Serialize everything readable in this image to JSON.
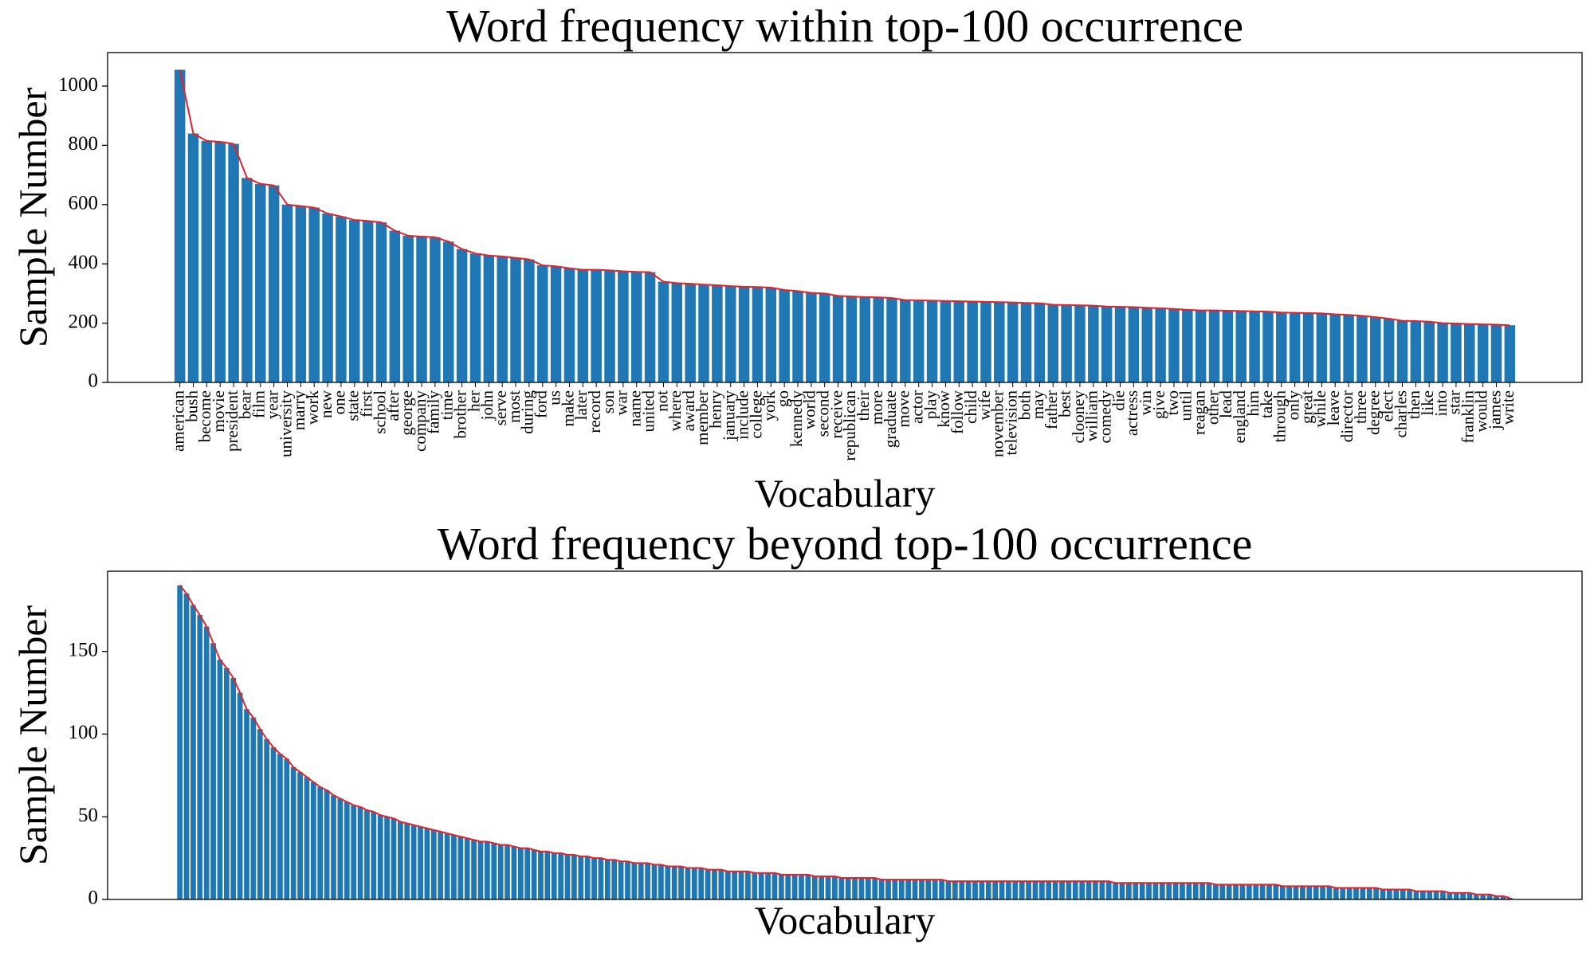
{
  "chart_data": [
    {
      "type": "bar",
      "title": "Word frequency within top-100 occurrence",
      "xlabel": "Vocabulary",
      "ylabel": "Sample Number",
      "categories": [
        "american",
        "bush",
        "become",
        "movie",
        "president",
        "bear",
        "film",
        "year",
        "university",
        "marry",
        "work",
        "new",
        "one",
        "state",
        "first",
        "school",
        "after",
        "george",
        "company",
        "family",
        "time",
        "brother",
        "her",
        "john",
        "serve",
        "most",
        "during",
        "ford",
        "us",
        "make",
        "later",
        "record",
        "son",
        "war",
        "name",
        "united",
        "not",
        "where",
        "award",
        "member",
        "henry",
        "january",
        "include",
        "college",
        "york",
        "go",
        "kennedy",
        "world",
        "second",
        "receive",
        "republican",
        "their",
        "more",
        "graduate",
        "move",
        "actor",
        "play",
        "know",
        "follow",
        "child",
        "wife",
        "november",
        "television",
        "both",
        "may",
        "father",
        "best",
        "clooney",
        "william",
        "comedy",
        "die",
        "actress",
        "win",
        "give",
        "two",
        "until",
        "reagan",
        "other",
        "lead",
        "england",
        "him",
        "take",
        "through",
        "only",
        "great",
        "while",
        "leave",
        "director",
        "three",
        "degree",
        "elect",
        "charles",
        "then",
        "like",
        "into",
        "star",
        "franklin",
        "would",
        "james",
        "write"
      ],
      "values": [
        1055,
        840,
        815,
        812,
        805,
        690,
        670,
        665,
        600,
        595,
        590,
        570,
        560,
        548,
        545,
        540,
        512,
        495,
        492,
        490,
        475,
        450,
        435,
        428,
        425,
        420,
        415,
        395,
        392,
        385,
        380,
        380,
        378,
        375,
        373,
        372,
        340,
        335,
        333,
        330,
        328,
        325,
        323,
        322,
        320,
        312,
        308,
        302,
        300,
        292,
        290,
        288,
        287,
        285,
        278,
        277,
        276,
        275,
        274,
        273,
        272,
        271,
        270,
        268,
        267,
        262,
        261,
        260,
        259,
        256,
        255,
        254,
        252,
        250,
        248,
        245,
        243,
        243,
        242,
        241,
        240,
        239,
        236,
        235,
        234,
        233,
        230,
        228,
        225,
        220,
        215,
        208,
        207,
        205,
        200,
        199,
        197,
        196,
        195,
        193
      ],
      "color": "#1f77b4",
      "line_color": "#e8202a",
      "ylim": [
        0,
        1113
      ],
      "yticks": [
        0,
        200,
        400,
        600,
        800,
        1000
      ]
    },
    {
      "type": "bar",
      "title": "Word frequency beyond top-100 occurrence",
      "xlabel": "Vocabulary",
      "ylabel": "Sample Number",
      "categories": [
        null,
        null,
        null,
        null,
        null,
        null,
        null,
        null,
        null,
        null,
        null,
        null,
        null,
        null,
        null,
        null,
        null,
        null,
        null,
        null,
        null,
        null,
        null,
        null,
        null,
        null,
        null,
        null,
        null,
        null,
        null,
        null,
        null,
        null,
        null,
        null,
        null,
        null,
        null,
        null,
        null,
        null,
        null,
        null,
        null,
        null,
        null,
        null,
        null,
        null,
        null,
        null,
        null,
        null,
        null,
        null,
        null,
        null,
        null,
        null,
        null,
        null,
        null,
        null,
        null,
        null,
        null,
        null,
        null,
        null,
        null,
        null,
        null,
        null,
        null,
        null,
        null,
        null,
        null,
        null,
        null,
        null,
        null,
        null,
        null,
        null,
        null,
        null,
        null,
        null,
        null,
        null,
        null,
        null,
        null,
        null,
        null,
        null,
        null,
        null,
        null,
        null,
        null,
        null,
        null,
        null,
        null,
        null,
        null,
        null,
        null,
        null,
        null,
        null,
        null,
        null,
        null,
        null,
        null,
        null,
        null,
        null,
        null,
        null,
        null,
        null,
        null,
        null,
        null,
        null,
        null,
        null,
        null,
        null,
        null,
        null,
        null,
        null,
        null,
        null,
        null,
        null,
        null,
        null,
        null,
        null,
        null,
        null,
        null,
        null,
        null,
        null,
        null,
        null,
        null,
        null,
        null,
        null,
        null,
        null,
        null,
        null,
        null,
        null,
        null,
        null,
        null,
        null,
        null,
        null,
        null,
        null,
        null,
        null,
        null,
        null,
        null,
        null,
        null,
        null,
        null,
        null,
        null,
        null,
        null,
        null,
        null,
        null,
        null,
        null,
        null,
        null,
        null,
        null,
        null,
        null,
        null,
        null,
        null,
        null
      ],
      "values": [
        190,
        185,
        178,
        172,
        165,
        155,
        145,
        140,
        134,
        125,
        115,
        110,
        103,
        97,
        92,
        88,
        85,
        80,
        77,
        74,
        71,
        68,
        66,
        63,
        61,
        59,
        57,
        56,
        54,
        53,
        51,
        50,
        49,
        47,
        46,
        45,
        44,
        43,
        42,
        41,
        40,
        39,
        38,
        37,
        36,
        35,
        35,
        34,
        33,
        33,
        32,
        31,
        31,
        30,
        29,
        29,
        28,
        28,
        27,
        27,
        26,
        26,
        25,
        25,
        24,
        24,
        23,
        23,
        22,
        22,
        22,
        21,
        21,
        20,
        20,
        20,
        19,
        19,
        19,
        18,
        18,
        18,
        17,
        17,
        17,
        17,
        16,
        16,
        16,
        16,
        15,
        15,
        15,
        15,
        15,
        14,
        14,
        14,
        14,
        13,
        13,
        13,
        13,
        13,
        13,
        12,
        12,
        12,
        12,
        12,
        12,
        12,
        12,
        12,
        12,
        11,
        11,
        11,
        11,
        11,
        11,
        11,
        11,
        11,
        11,
        11,
        11,
        11,
        11,
        11,
        11,
        11,
        11,
        11,
        11,
        11,
        11,
        11,
        11,
        11,
        10,
        10,
        10,
        10,
        10,
        10,
        10,
        10,
        10,
        10,
        10,
        10,
        10,
        10,
        10,
        9,
        9,
        9,
        9,
        9,
        9,
        9,
        9,
        9,
        9,
        8,
        8,
        8,
        8,
        8,
        8,
        8,
        8,
        7,
        7,
        7,
        7,
        7,
        7,
        7,
        6,
        6,
        6,
        6,
        6,
        5,
        5,
        5,
        5,
        5,
        4,
        4,
        4,
        4,
        3,
        3,
        3,
        2,
        2,
        1
      ],
      "color": "#1f77b4",
      "line_color": "#e8202a",
      "ylim": [
        0,
        198.5
      ],
      "yticks": [
        0,
        50,
        100,
        150
      ]
    }
  ]
}
